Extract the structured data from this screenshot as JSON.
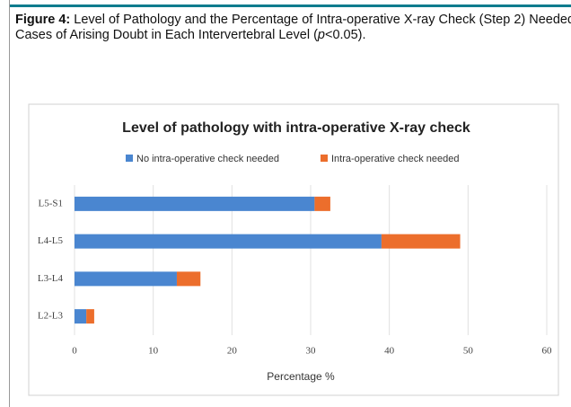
{
  "caption": {
    "label": "Figure 4:",
    "text_before": " Level of Pathology and the Percentage of Intra-operative X-ray Check (Step 2) Needed in Cases of Arising Doubt in Each Intervertebral Level (",
    "p": "p",
    "text_after": "<0.05)."
  },
  "chart_data": {
    "type": "stacked_barh",
    "title": "Level of pathology with intra-operative X-ray check",
    "categories": [
      "L5-S1",
      "L4-L5",
      "L3-L4",
      "L2-L3"
    ],
    "series": [
      {
        "name": "No intra-operative check needed",
        "color": "#4a86d0",
        "values": [
          30.5,
          39,
          13,
          1.5
        ]
      },
      {
        "name": "Intra-operative check needed",
        "color": "#ec6e2c",
        "values": [
          2,
          10,
          3,
          1
        ]
      }
    ],
    "xlabel": "Percentage %",
    "xlim": [
      0,
      60
    ],
    "xticks": [
      0,
      10,
      20,
      30,
      40,
      50,
      60
    ],
    "grid": true,
    "legend": "top"
  }
}
